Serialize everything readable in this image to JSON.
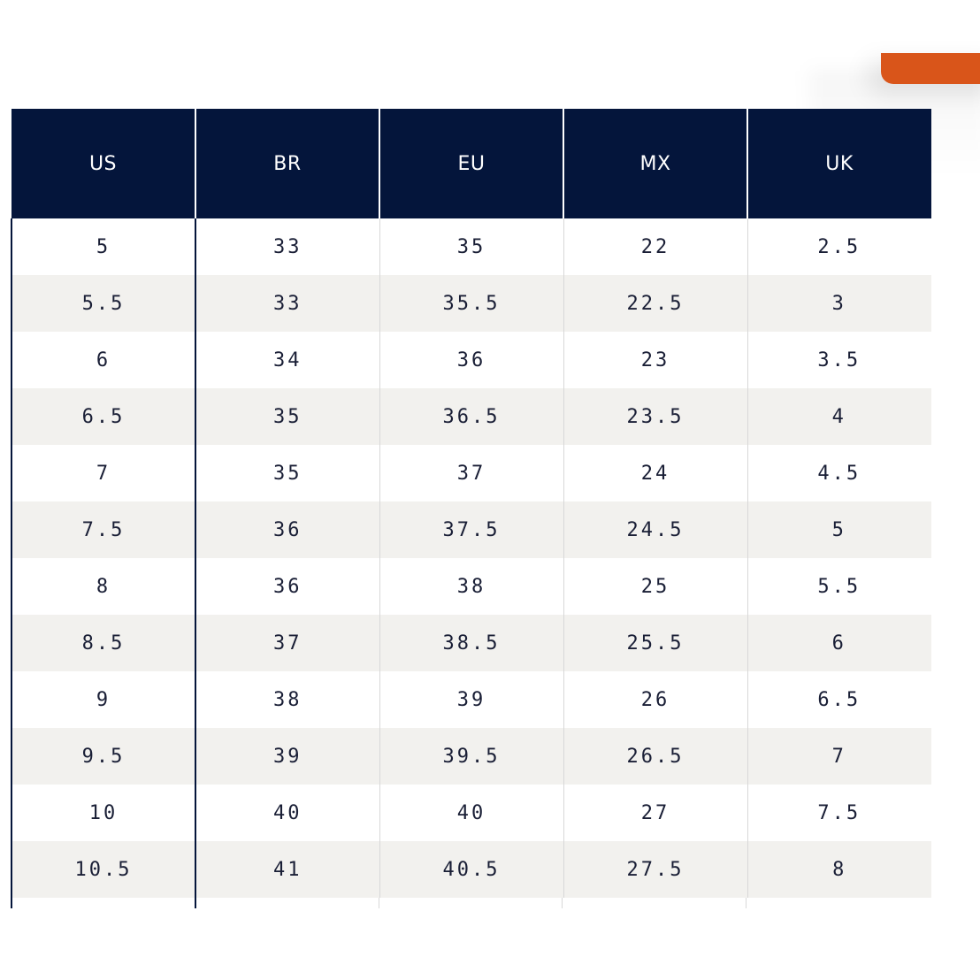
{
  "colors": {
    "header_bg": "#04153b",
    "header_text": "#ffffff",
    "stripe": "#f2f1ee",
    "accent": "#d9551a"
  },
  "table": {
    "headers": [
      "US",
      "BR",
      "EU",
      "MX",
      "UK"
    ],
    "rows": [
      [
        "5",
        "33",
        "35",
        "22",
        "2.5"
      ],
      [
        "5.5",
        "33",
        "35.5",
        "22.5",
        "3"
      ],
      [
        "6",
        "34",
        "36",
        "23",
        "3.5"
      ],
      [
        "6.5",
        "35",
        "36.5",
        "23.5",
        "4"
      ],
      [
        "7",
        "35",
        "37",
        "24",
        "4.5"
      ],
      [
        "7.5",
        "36",
        "37.5",
        "24.5",
        "5"
      ],
      [
        "8",
        "36",
        "38",
        "25",
        "5.5"
      ],
      [
        "8.5",
        "37",
        "38.5",
        "25.5",
        "6"
      ],
      [
        "9",
        "38",
        "39",
        "26",
        "6.5"
      ],
      [
        "9.5",
        "39",
        "39.5",
        "26.5",
        "7"
      ],
      [
        "10",
        "40",
        "40",
        "27",
        "7.5"
      ],
      [
        "10.5",
        "41",
        "40.5",
        "27.5",
        "8"
      ]
    ]
  }
}
